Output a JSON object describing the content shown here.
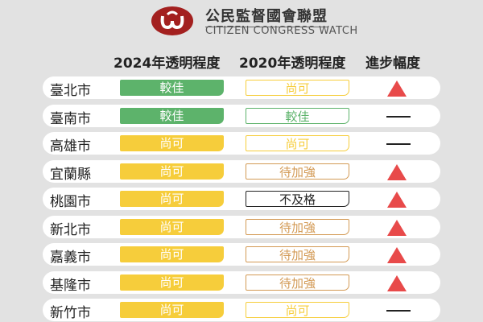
{
  "header": {
    "org_zh": "公民監督國會聯盟",
    "org_en": "CITIZEN CONGRESS WATCH",
    "col_2024": "2024年透明程度",
    "col_2020": "2020年透明程度",
    "col_change": "進步幅度"
  },
  "colors": {
    "green": "#5db36b",
    "yellow": "#f6cd3b",
    "orange": "#d39a55",
    "black": "#222222",
    "red": "#e84a4a"
  },
  "rows": [
    {
      "city": "臺北市",
      "y2024": "較佳",
      "c2024": "green",
      "y2020": "尚可",
      "c2020": "yellow",
      "change": "up"
    },
    {
      "city": "臺南市",
      "y2024": "較佳",
      "c2024": "green",
      "y2020": "較佳",
      "c2020": "green",
      "change": "same"
    },
    {
      "city": "高雄市",
      "y2024": "尚可",
      "c2024": "yellow",
      "y2020": "尚可",
      "c2020": "yellow",
      "change": "same"
    },
    {
      "city": "宜蘭縣",
      "y2024": "尚可",
      "c2024": "yellow",
      "y2020": "待加強",
      "c2020": "orange",
      "change": "up"
    },
    {
      "city": "桃園市",
      "y2024": "尚可",
      "c2024": "yellow",
      "y2020": "不及格",
      "c2020": "black",
      "change": "up"
    },
    {
      "city": "新北市",
      "y2024": "尚可",
      "c2024": "yellow",
      "y2020": "待加強",
      "c2020": "orange",
      "change": "up"
    },
    {
      "city": "嘉義市",
      "y2024": "尚可",
      "c2024": "yellow",
      "y2020": "待加強",
      "c2020": "orange",
      "change": "up"
    },
    {
      "city": "基隆市",
      "y2024": "尚可",
      "c2024": "yellow",
      "y2020": "待加強",
      "c2020": "orange",
      "change": "up"
    },
    {
      "city": "新竹市",
      "y2024": "尚可",
      "c2024": "yellow",
      "y2020": "尚可",
      "c2020": "yellow",
      "change": "same"
    }
  ]
}
